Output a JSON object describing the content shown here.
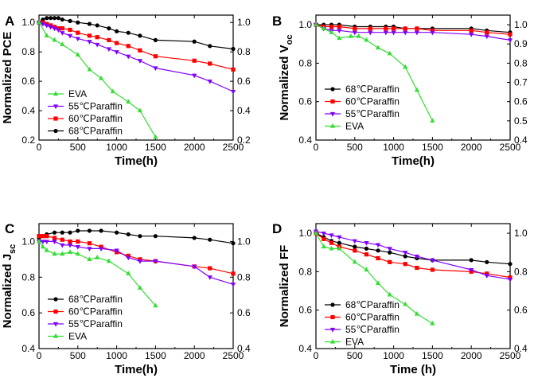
{
  "chart_data": [
    {
      "type": "line",
      "panel": "A",
      "title": "",
      "xlabel": "Time(h)",
      "ylabel": "Normalized PCE",
      "ylabel_sub": "",
      "xlim": [
        0,
        2500
      ],
      "ylim": [
        0.2,
        1.05
      ],
      "xticks": [
        "0",
        "500",
        "1000",
        "1500",
        "2000",
        "2500"
      ],
      "xtick_values": [
        0,
        500,
        1000,
        1500,
        2000,
        2500
      ],
      "yticks": [
        "0.2",
        "0.4",
        "0.6",
        "0.8",
        "1.0"
      ],
      "ytick_values": [
        0.2,
        0.4,
        0.6,
        0.8,
        1.0
      ],
      "right_yticks": [
        "0.2",
        "0.4",
        "0.6",
        "0.8",
        "1.0"
      ],
      "legend_position": "bottom-left",
      "legend_order": [
        "EVA",
        "55℃Paraffin",
        "60℃Paraffin",
        "68℃Paraffin"
      ],
      "series": [
        {
          "name": "68℃Paraffin",
          "color": "#000000",
          "marker": "circle",
          "x": [
            0,
            50,
            100,
            150,
            200,
            250,
            300,
            400,
            500,
            650,
            750,
            900,
            1000,
            1150,
            1300,
            1500,
            2000,
            2200,
            2500
          ],
          "y": [
            1.0,
            1.02,
            1.03,
            1.03,
            1.03,
            1.03,
            1.02,
            1.01,
            1.0,
            0.99,
            0.98,
            0.96,
            0.94,
            0.93,
            0.91,
            0.88,
            0.87,
            0.84,
            0.82
          ]
        },
        {
          "name": "60℃Paraffin",
          "color": "#ff0000",
          "marker": "square",
          "x": [
            0,
            50,
            100,
            150,
            200,
            250,
            300,
            400,
            500,
            650,
            750,
            900,
            1000,
            1150,
            1300,
            1500,
            2000,
            2200,
            2500
          ],
          "y": [
            1.0,
            1.0,
            0.99,
            0.98,
            0.97,
            0.96,
            0.96,
            0.95,
            0.93,
            0.91,
            0.9,
            0.88,
            0.86,
            0.84,
            0.81,
            0.77,
            0.74,
            0.72,
            0.68
          ]
        },
        {
          "name": "55℃Paraffin",
          "color": "#8000ff",
          "marker": "triangle-down",
          "x": [
            0,
            50,
            100,
            150,
            200,
            250,
            300,
            400,
            500,
            650,
            750,
            900,
            1000,
            1150,
            1300,
            1500,
            2000,
            2200,
            2500
          ],
          "y": [
            1.0,
            0.99,
            0.98,
            0.97,
            0.96,
            0.95,
            0.93,
            0.91,
            0.89,
            0.87,
            0.85,
            0.82,
            0.8,
            0.77,
            0.74,
            0.69,
            0.64,
            0.6,
            0.53
          ]
        },
        {
          "name": "EVA",
          "color": "#33dd33",
          "marker": "triangle-up",
          "x": [
            0,
            100,
            200,
            300,
            500,
            650,
            800,
            950,
            1150,
            1300,
            1500
          ],
          "y": [
            1.0,
            0.91,
            0.88,
            0.85,
            0.78,
            0.68,
            0.62,
            0.53,
            0.46,
            0.4,
            0.22
          ]
        }
      ]
    },
    {
      "type": "line",
      "panel": "B",
      "title": "",
      "xlabel": "Time(h)",
      "ylabel": "Normalized V",
      "ylabel_sub": "oc",
      "xlim": [
        0,
        2500
      ],
      "ylim": [
        0.4,
        1.05
      ],
      "xticks": [
        "0",
        "500",
        "1000",
        "1500",
        "2000",
        "2500"
      ],
      "xtick_values": [
        0,
        500,
        1000,
        1500,
        2000,
        2500
      ],
      "yticks": [
        "0.4",
        "0.6",
        "0.8",
        "1.0"
      ],
      "ytick_values": [
        0.4,
        0.6,
        0.8,
        1.0
      ],
      "right_yticks": [
        "0.4",
        "0.5",
        "0.6",
        "0.7",
        "0.8",
        "0.9",
        "1.0"
      ],
      "legend_position": "bottom-left",
      "legend_order": [
        "68℃Paraffin",
        "60℃Paraffin",
        "55℃Paraffin",
        "EVA"
      ],
      "series": [
        {
          "name": "68℃Paraffin",
          "color": "#000000",
          "marker": "circle",
          "x": [
            0,
            100,
            200,
            300,
            500,
            700,
            900,
            1000,
            1150,
            1300,
            1500,
            2000,
            2200,
            2500
          ],
          "y": [
            1.0,
            1.0,
            1.0,
            1.0,
            0.99,
            0.99,
            0.99,
            0.99,
            0.98,
            0.98,
            0.98,
            0.98,
            0.97,
            0.96
          ]
        },
        {
          "name": "60℃Paraffin",
          "color": "#ff0000",
          "marker": "square",
          "x": [
            0,
            100,
            200,
            300,
            500,
            700,
            900,
            1000,
            1150,
            1300,
            1500,
            2000,
            2200,
            2500
          ],
          "y": [
            1.0,
            0.99,
            0.99,
            0.99,
            0.98,
            0.98,
            0.98,
            0.98,
            0.98,
            0.98,
            0.97,
            0.97,
            0.96,
            0.95
          ]
        },
        {
          "name": "55℃Paraffin",
          "color": "#8000ff",
          "marker": "triangle-down",
          "x": [
            0,
            100,
            200,
            300,
            500,
            700,
            900,
            1000,
            1150,
            1300,
            1500,
            2000,
            2200,
            2500
          ],
          "y": [
            1.0,
            0.98,
            0.97,
            0.97,
            0.96,
            0.96,
            0.96,
            0.96,
            0.96,
            0.96,
            0.96,
            0.95,
            0.94,
            0.92
          ]
        },
        {
          "name": "EVA",
          "color": "#33dd33",
          "marker": "triangle-up",
          "x": [
            0,
            100,
            200,
            300,
            450,
            550,
            650,
            800,
            950,
            1150,
            1300,
            1500
          ],
          "y": [
            1.0,
            0.98,
            0.96,
            0.93,
            0.94,
            0.94,
            0.92,
            0.88,
            0.85,
            0.78,
            0.66,
            0.5
          ]
        }
      ]
    },
    {
      "type": "line",
      "panel": "C",
      "title": "",
      "xlabel": "Time(h)",
      "ylabel": "Normalized J",
      "ylabel_sub": "sc",
      "xlim": [
        0,
        2500
      ],
      "ylim": [
        0.4,
        1.1
      ],
      "xticks": [
        "0",
        "500",
        "1000",
        "1500",
        "2000",
        "2500"
      ],
      "xtick_values": [
        0,
        500,
        1000,
        1500,
        2000,
        2500
      ],
      "yticks": [
        "0.4",
        "0.6",
        "0.8",
        "1.0"
      ],
      "ytick_values": [
        0.4,
        0.6,
        0.8,
        1.0
      ],
      "right_yticks": [
        "0.4",
        "0.6",
        "0.8",
        "1.0"
      ],
      "legend_position": "bottom-left",
      "legend_order": [
        "68℃Paraffin",
        "60℃Paraffin",
        "55℃Paraffin",
        "EVA"
      ],
      "series": [
        {
          "name": "68℃Paraffin",
          "color": "#000000",
          "marker": "circle",
          "x": [
            0,
            50,
            100,
            200,
            300,
            400,
            500,
            650,
            800,
            1000,
            1150,
            1300,
            1500,
            2000,
            2200,
            2500
          ],
          "y": [
            1.02,
            1.03,
            1.04,
            1.05,
            1.05,
            1.05,
            1.06,
            1.06,
            1.06,
            1.05,
            1.04,
            1.03,
            1.03,
            1.02,
            1.01,
            0.99
          ]
        },
        {
          "name": "60℃Paraffin",
          "color": "#ff0000",
          "marker": "square",
          "x": [
            0,
            50,
            100,
            200,
            300,
            400,
            500,
            650,
            800,
            1000,
            1150,
            1300,
            1500,
            2000,
            2200,
            2500
          ],
          "y": [
            1.03,
            1.03,
            1.03,
            1.02,
            1.01,
            1.0,
            1.0,
            0.99,
            0.97,
            0.94,
            0.92,
            0.9,
            0.89,
            0.86,
            0.85,
            0.82
          ]
        },
        {
          "name": "55℃Paraffin",
          "color": "#8000ff",
          "marker": "triangle-down",
          "x": [
            0,
            50,
            100,
            200,
            300,
            400,
            500,
            650,
            800,
            1000,
            1150,
            1300,
            1500,
            2000,
            2200,
            2500
          ],
          "y": [
            1.0,
            1.0,
            1.0,
            1.0,
            0.98,
            0.98,
            0.97,
            0.96,
            0.96,
            0.95,
            0.91,
            0.89,
            0.89,
            0.86,
            0.8,
            0.76
          ]
        },
        {
          "name": "EVA",
          "color": "#33dd33",
          "marker": "triangle-up",
          "x": [
            0,
            50,
            100,
            200,
            300,
            400,
            500,
            650,
            750,
            900,
            1150,
            1300,
            1500
          ],
          "y": [
            1.0,
            0.97,
            0.95,
            0.93,
            0.93,
            0.94,
            0.93,
            0.9,
            0.91,
            0.89,
            0.82,
            0.74,
            0.64
          ]
        }
      ]
    },
    {
      "type": "line",
      "panel": "D",
      "title": "",
      "xlabel": "Time (h)",
      "ylabel": "Normalized FF",
      "ylabel_sub": "",
      "xlim": [
        0,
        2500
      ],
      "ylim": [
        0.4,
        1.05
      ],
      "xticks": [
        "0",
        "500",
        "1000",
        "1500",
        "2000",
        "2500"
      ],
      "xtick_values": [
        0,
        500,
        1000,
        1500,
        2000,
        2500
      ],
      "yticks": [
        "0.4",
        "0.6",
        "0.8",
        "1.0"
      ],
      "ytick_values": [
        0.4,
        0.6,
        0.8,
        1.0
      ],
      "right_yticks": [
        "0.4",
        "0.6",
        "0.8",
        "1.0"
      ],
      "legend_position": "bottom-left",
      "legend_order": [
        "68℃Paraffin",
        "60℃Paraffin",
        "55℃Paraffin",
        "EVA"
      ],
      "series": [
        {
          "name": "68℃Paraffin",
          "color": "#000000",
          "marker": "circle",
          "x": [
            0,
            100,
            200,
            300,
            500,
            650,
            800,
            950,
            1150,
            1300,
            1500,
            2000,
            2200,
            2500
          ],
          "y": [
            1.0,
            0.98,
            0.96,
            0.95,
            0.93,
            0.92,
            0.91,
            0.9,
            0.88,
            0.87,
            0.86,
            0.86,
            0.85,
            0.84
          ]
        },
        {
          "name": "60℃Paraffin",
          "color": "#ff0000",
          "marker": "square",
          "x": [
            0,
            100,
            200,
            300,
            500,
            650,
            800,
            950,
            1150,
            1300,
            1500,
            2000,
            2200,
            2500
          ],
          "y": [
            1.0,
            0.97,
            0.95,
            0.93,
            0.91,
            0.89,
            0.87,
            0.85,
            0.84,
            0.82,
            0.81,
            0.8,
            0.79,
            0.77
          ]
        },
        {
          "name": "55℃Paraffin",
          "color": "#8000ff",
          "marker": "triangle-down",
          "x": [
            0,
            100,
            200,
            300,
            500,
            650,
            800,
            950,
            1150,
            1300,
            1500,
            2000,
            2200,
            2500
          ],
          "y": [
            1.01,
            1.0,
            0.99,
            0.98,
            0.96,
            0.95,
            0.94,
            0.92,
            0.9,
            0.88,
            0.86,
            0.81,
            0.78,
            0.76
          ]
        },
        {
          "name": "EVA",
          "color": "#33dd33",
          "marker": "triangle-up",
          "x": [
            0,
            100,
            200,
            300,
            500,
            650,
            800,
            950,
            1150,
            1300,
            1500
          ],
          "y": [
            1.0,
            0.93,
            0.92,
            0.92,
            0.85,
            0.81,
            0.74,
            0.68,
            0.63,
            0.58,
            0.53
          ]
        }
      ]
    }
  ]
}
